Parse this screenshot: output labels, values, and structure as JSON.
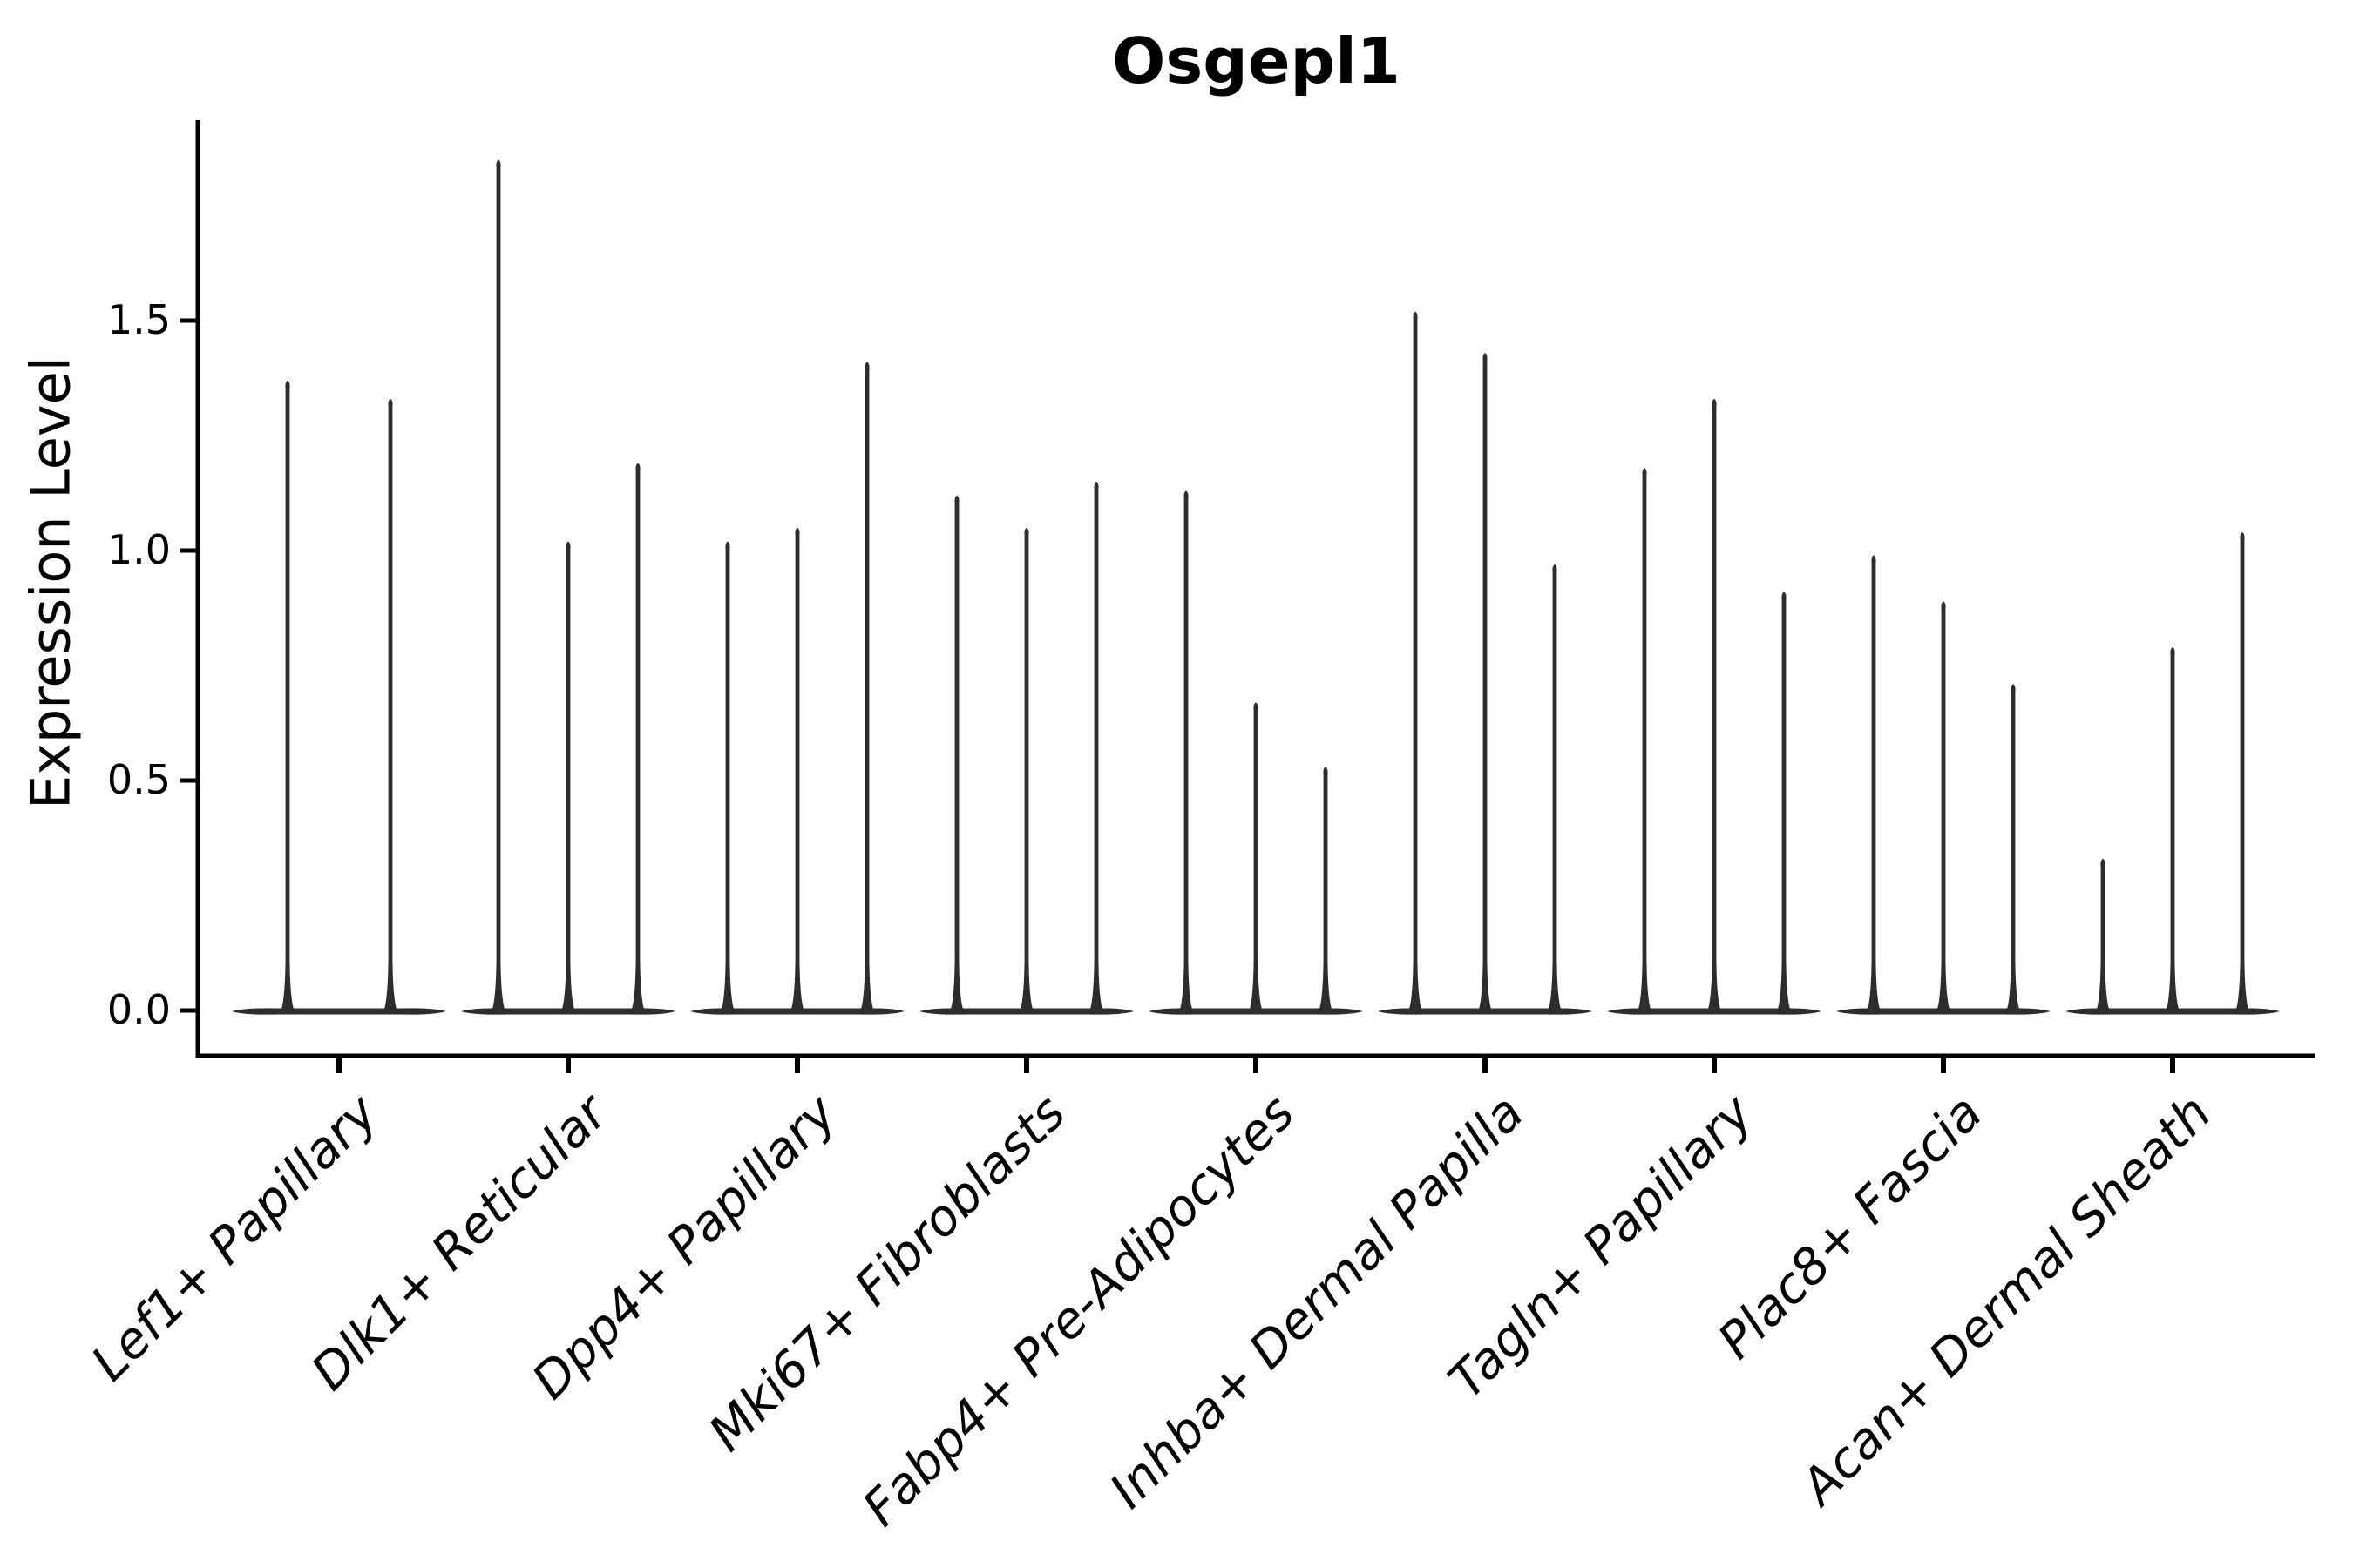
{
  "chart_data": {
    "type": "violin",
    "title": "Osgepl1",
    "ylabel": "Expression Level",
    "xlabel": "",
    "grid": false,
    "legend": "none",
    "background": "#ffffff",
    "ylim": [
      -0.1,
      1.93
    ],
    "yticks": [
      {
        "label": "0.0",
        "value": 0.0
      },
      {
        "label": "0.5",
        "value": 0.5
      },
      {
        "label": "1.0",
        "value": 1.0
      },
      {
        "label": "1.5",
        "value": 1.5
      }
    ],
    "categories": [
      "Lef1+ Papillary",
      "Dlk1+ Reticular",
      "Dpp4+ Papillary",
      "Mki67+ Fibroblasts",
      "Fabp4+ Pre-Adipocytes",
      "Inhba+ Dermal Papilla",
      "Tagln+ Papillary",
      "Plac8+ Fascia",
      "Acan+ Dermal Sheath"
    ],
    "violin_description": "Each category shows 2-3 very thin violins: a flat wide base at expression 0 (most cells zero) and a narrow density spike; value listed is the top (max expression) of each spike.",
    "violins": [
      [
        1.37,
        1.33
      ],
      [
        1.85,
        1.02,
        1.19
      ],
      [
        1.02,
        1.05,
        1.41
      ],
      [
        1.12,
        1.05,
        1.15
      ],
      [
        1.13,
        0.67,
        0.53
      ],
      [
        1.52,
        1.43,
        0.97
      ],
      [
        1.18,
        1.33,
        0.91
      ],
      [
        0.99,
        0.89,
        0.71
      ],
      [
        0.33,
        0.79,
        1.04
      ]
    ],
    "colors": {
      "violin": "#2d2d2d",
      "axis": "#000000",
      "text": "#000000"
    }
  }
}
